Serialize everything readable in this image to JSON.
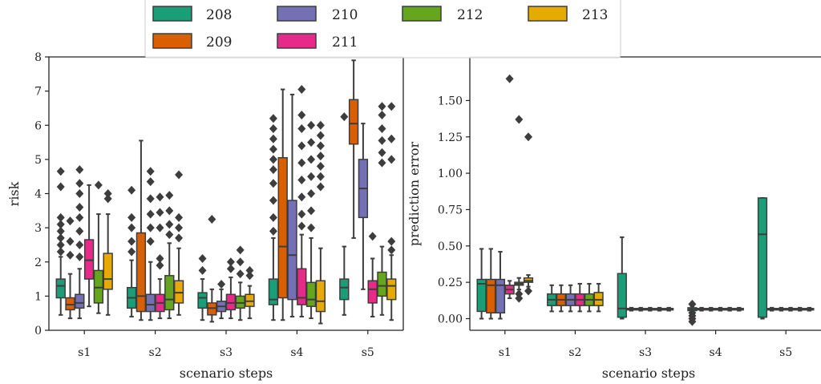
{
  "figure": {
    "background": "#ffffff",
    "axis_color": "#222222",
    "box_edge_color": "#3d3d3d"
  },
  "legend": {
    "placement": "top-center",
    "entries": [
      {
        "label": "208",
        "color": "#1b9e77"
      },
      {
        "label": "209",
        "color": "#d95f02"
      },
      {
        "label": "210",
        "color": "#7570b3"
      },
      {
        "label": "211",
        "color": "#e7298a"
      },
      {
        "label": "212",
        "color": "#66a61e"
      },
      {
        "label": "213",
        "color": "#e6ab02"
      }
    ]
  },
  "chart_data": [
    {
      "type": "boxplot",
      "xlabel": "scenario steps",
      "ylabel": "risk",
      "categories": [
        "s1",
        "s2",
        "s3",
        "s4",
        "s5"
      ],
      "ylim": [
        0,
        8
      ],
      "yticks": [
        0,
        1,
        2,
        3,
        4,
        5,
        6,
        7,
        8
      ],
      "ytick_labels": [
        "0",
        "1",
        "2",
        "3",
        "4",
        "5",
        "6",
        "7",
        "8"
      ],
      "grid": false,
      "series": [
        {
          "name": "208",
          "color": "#1b9e77",
          "boxes": [
            {
              "whislo": 0.45,
              "q1": 0.95,
              "med": 1.3,
              "q3": 1.5,
              "whishi": 2.15,
              "fliers": [
                2.3,
                2.5,
                2.7,
                2.9,
                3.1,
                3.3,
                4.2,
                4.65
              ]
            },
            {
              "whislo": 0.4,
              "q1": 0.65,
              "med": 0.95,
              "q3": 1.25,
              "whishi": 2.05,
              "fliers": [
                2.3,
                2.6,
                3.0,
                3.3,
                4.1
              ]
            },
            {
              "whislo": 0.3,
              "q1": 0.65,
              "med": 0.95,
              "q3": 1.1,
              "whishi": 1.5,
              "fliers": [
                1.75,
                2.1
              ]
            },
            {
              "whislo": 0.3,
              "q1": 0.75,
              "med": 0.9,
              "q3": 1.5,
              "whishi": 2.7,
              "fliers": [
                2.9,
                3.3,
                3.8,
                4.3,
                4.7,
                5.0,
                5.3,
                5.6,
                5.9,
                6.2
              ]
            },
            {
              "whislo": 0.45,
              "q1": 0.9,
              "med": 1.25,
              "q3": 1.5,
              "whishi": 2.45,
              "fliers": [
                6.25
              ]
            }
          ]
        },
        {
          "name": "209",
          "color": "#d95f02",
          "boxes": [
            {
              "whislo": 0.35,
              "q1": 0.6,
              "med": 0.75,
              "q3": 0.95,
              "whishi": 1.65,
              "fliers": [
                2.2,
                2.6,
                3.2
              ]
            },
            {
              "whislo": 0.3,
              "q1": 0.55,
              "med": 1.0,
              "q3": 2.85,
              "whishi": 5.55,
              "fliers": []
            },
            {
              "whislo": 0.25,
              "q1": 0.45,
              "med": 0.65,
              "q3": 0.8,
              "whishi": 1.2,
              "fliers": [
                3.25
              ]
            },
            {
              "whislo": 0.3,
              "q1": 0.95,
              "med": 2.45,
              "q3": 5.05,
              "whishi": 7.05,
              "fliers": []
            },
            {
              "whislo": 2.7,
              "q1": 5.45,
              "med": 6.05,
              "q3": 6.75,
              "whishi": 7.9,
              "fliers": []
            }
          ]
        },
        {
          "name": "210",
          "color": "#7570b3",
          "boxes": [
            {
              "whislo": 0.35,
              "q1": 0.65,
              "med": 0.8,
              "q3": 1.05,
              "whishi": 1.8,
              "fliers": [
                2.15,
                2.5,
                2.9,
                3.3,
                3.6,
                4.0,
                4.3,
                4.7
              ]
            },
            {
              "whislo": 0.3,
              "q1": 0.55,
              "med": 0.75,
              "q3": 1.05,
              "whishi": 2.0,
              "fliers": [
                2.6,
                3.0,
                3.4,
                3.85,
                4.35,
                4.65
              ]
            },
            {
              "whislo": 0.35,
              "q1": 0.55,
              "med": 0.7,
              "q3": 0.85,
              "whishi": 1.2,
              "fliers": [
                1.35
              ]
            },
            {
              "whislo": 0.4,
              "q1": 0.9,
              "med": 2.2,
              "q3": 3.8,
              "whishi": 6.9,
              "fliers": []
            },
            {
              "whislo": 1.2,
              "q1": 3.3,
              "med": 4.15,
              "q3": 5.0,
              "whishi": 6.05,
              "fliers": []
            }
          ]
        },
        {
          "name": "211",
          "color": "#e7298a",
          "boxes": [
            {
              "whislo": 0.7,
              "q1": 1.5,
              "med": 2.05,
              "q3": 2.65,
              "whishi": 4.25,
              "fliers": []
            },
            {
              "whislo": 0.35,
              "q1": 0.55,
              "med": 0.8,
              "q3": 1.05,
              "whishi": 1.5,
              "fliers": [
                1.9,
                2.1,
                3.0,
                3.45,
                3.9
              ]
            },
            {
              "whislo": 0.35,
              "q1": 0.6,
              "med": 0.8,
              "q3": 1.05,
              "whishi": 1.55,
              "fliers": [
                1.8,
                2.0
              ]
            },
            {
              "whislo": 0.4,
              "q1": 0.75,
              "med": 0.95,
              "q3": 1.8,
              "whishi": 2.8,
              "fliers": [
                3.05,
                3.4,
                3.9,
                4.4,
                4.9,
                5.4,
                5.9,
                6.3,
                7.05
              ]
            },
            {
              "whislo": 0.4,
              "q1": 0.8,
              "med": 1.2,
              "q3": 1.45,
              "whishi": 2.1,
              "fliers": [
                2.75
              ]
            }
          ]
        },
        {
          "name": "212",
          "color": "#66a61e",
          "boxes": [
            {
              "whislo": 0.5,
              "q1": 0.8,
              "med": 1.25,
              "q3": 1.75,
              "whishi": 3.4,
              "fliers": [
                4.25
              ]
            },
            {
              "whislo": 0.35,
              "q1": 0.6,
              "med": 0.9,
              "q3": 1.6,
              "whishi": 2.55,
              "fliers": [
                2.8,
                3.1,
                3.5,
                3.95
              ]
            },
            {
              "whislo": 0.3,
              "q1": 0.65,
              "med": 0.8,
              "q3": 1.0,
              "whishi": 1.4,
              "fliers": [
                1.65,
                2.0,
                2.35
              ]
            },
            {
              "whislo": 0.35,
              "q1": 0.7,
              "med": 0.9,
              "q3": 1.4,
              "whishi": 2.7,
              "fliers": [
                3.0,
                3.5,
                4.0,
                4.5,
                5.0,
                5.5,
                6.0
              ]
            },
            {
              "whislo": 0.45,
              "q1": 1.0,
              "med": 1.3,
              "q3": 1.7,
              "whishi": 2.45,
              "fliers": [
                4.9,
                5.2,
                5.55,
                5.9,
                6.3,
                6.55
              ]
            }
          ]
        },
        {
          "name": "213",
          "color": "#e6ab02",
          "boxes": [
            {
              "whislo": 0.45,
              "q1": 1.2,
              "med": 1.5,
              "q3": 2.25,
              "whishi": 3.4,
              "fliers": [
                3.85,
                4.0
              ]
            },
            {
              "whislo": 0.45,
              "q1": 0.8,
              "med": 1.1,
              "q3": 1.45,
              "whishi": 2.4,
              "fliers": [
                2.7,
                3.0,
                3.3,
                4.55
              ]
            },
            {
              "whislo": 0.35,
              "q1": 0.7,
              "med": 0.85,
              "q3": 1.05,
              "whishi": 1.3,
              "fliers": [
                1.6,
                1.75
              ]
            },
            {
              "whislo": 0.2,
              "q1": 0.55,
              "med": 0.85,
              "q3": 1.45,
              "whishi": 2.4,
              "fliers": [
                4.2,
                4.5,
                4.8,
                5.1,
                5.4,
                5.7,
                6.0
              ]
            },
            {
              "whislo": 0.3,
              "q1": 0.9,
              "med": 1.3,
              "q3": 1.5,
              "whishi": 2.2,
              "fliers": [
                2.35,
                2.6,
                5.0,
                5.6,
                6.55
              ]
            }
          ]
        }
      ]
    },
    {
      "type": "boxplot",
      "xlabel": "scenario steps",
      "ylabel": "prediction error",
      "categories": [
        "s1",
        "s2",
        "s3",
        "s4",
        "s5"
      ],
      "ylim": [
        -0.08,
        1.8
      ],
      "yticks": [
        0,
        0.25,
        0.5,
        0.75,
        1.0,
        1.25,
        1.5
      ],
      "ytick_labels": [
        "0.00",
        "0.25",
        "0.50",
        "0.75",
        "1.00",
        "1.25",
        "1.50"
      ],
      "grid": false,
      "series": [
        {
          "name": "208",
          "color": "#1b9e77",
          "boxes": [
            {
              "whislo": 0.0,
              "q1": 0.05,
              "med": 0.24,
              "q3": 0.27,
              "whishi": 0.48,
              "fliers": []
            },
            {
              "whislo": 0.05,
              "q1": 0.09,
              "med": 0.13,
              "q3": 0.17,
              "whishi": 0.23,
              "fliers": []
            },
            {
              "whislo": 0.0,
              "q1": 0.01,
              "med": 0.07,
              "q3": 0.31,
              "whishi": 0.56,
              "fliers": []
            },
            {
              "whislo": 0.05,
              "q1": 0.055,
              "med": 0.065,
              "q3": 0.075,
              "whishi": 0.085,
              "fliers": [
                -0.02,
                0.0,
                0.02,
                0.04,
                0.1
              ]
            },
            {
              "whislo": 0.0,
              "q1": 0.01,
              "med": 0.58,
              "q3": 0.83,
              "whishi": 0.83,
              "fliers": []
            }
          ]
        },
        {
          "name": "209",
          "color": "#d95f02",
          "boxes": [
            {
              "whislo": 0.0,
              "q1": 0.04,
              "med": 0.23,
              "q3": 0.27,
              "whishi": 0.48,
              "fliers": []
            },
            {
              "whislo": 0.05,
              "q1": 0.09,
              "med": 0.13,
              "q3": 0.17,
              "whishi": 0.23,
              "fliers": []
            },
            {
              "whislo": 0.055,
              "q1": 0.06,
              "med": 0.065,
              "q3": 0.07,
              "whishi": 0.075,
              "fliers": []
            },
            {
              "whislo": 0.055,
              "q1": 0.06,
              "med": 0.065,
              "q3": 0.07,
              "whishi": 0.075,
              "fliers": []
            },
            {
              "whislo": 0.055,
              "q1": 0.06,
              "med": 0.065,
              "q3": 0.07,
              "whishi": 0.075,
              "fliers": []
            }
          ]
        },
        {
          "name": "210",
          "color": "#7570b3",
          "boxes": [
            {
              "whislo": 0.0,
              "q1": 0.04,
              "med": 0.23,
              "q3": 0.27,
              "whishi": 0.46,
              "fliers": []
            },
            {
              "whislo": 0.05,
              "q1": 0.09,
              "med": 0.13,
              "q3": 0.17,
              "whishi": 0.23,
              "fliers": []
            },
            {
              "whislo": 0.055,
              "q1": 0.06,
              "med": 0.065,
              "q3": 0.07,
              "whishi": 0.075,
              "fliers": []
            },
            {
              "whislo": 0.055,
              "q1": 0.06,
              "med": 0.065,
              "q3": 0.07,
              "whishi": 0.075,
              "fliers": []
            },
            {
              "whislo": 0.055,
              "q1": 0.06,
              "med": 0.065,
              "q3": 0.07,
              "whishi": 0.075,
              "fliers": []
            }
          ]
        },
        {
          "name": "211",
          "color": "#e7298a",
          "boxes": [
            {
              "whislo": 0.14,
              "q1": 0.17,
              "med": 0.2,
              "q3": 0.23,
              "whishi": 0.26,
              "fliers": [
                1.65
              ]
            },
            {
              "whislo": 0.05,
              "q1": 0.09,
              "med": 0.13,
              "q3": 0.17,
              "whishi": 0.24,
              "fliers": []
            },
            {
              "whislo": 0.055,
              "q1": 0.06,
              "med": 0.065,
              "q3": 0.07,
              "whishi": 0.075,
              "fliers": []
            },
            {
              "whislo": 0.055,
              "q1": 0.06,
              "med": 0.065,
              "q3": 0.07,
              "whishi": 0.075,
              "fliers": []
            },
            {
              "whislo": 0.055,
              "q1": 0.06,
              "med": 0.065,
              "q3": 0.07,
              "whishi": 0.075,
              "fliers": []
            }
          ]
        },
        {
          "name": "212",
          "color": "#66a61e",
          "boxes": [
            {
              "whislo": 0.2,
              "q1": 0.23,
              "med": 0.24,
              "q3": 0.25,
              "whishi": 0.28,
              "fliers": [
                0.14,
                0.17,
                1.37
              ]
            },
            {
              "whislo": 0.05,
              "q1": 0.09,
              "med": 0.13,
              "q3": 0.17,
              "whishi": 0.24,
              "fliers": []
            },
            {
              "whislo": 0.055,
              "q1": 0.06,
              "med": 0.065,
              "q3": 0.07,
              "whishi": 0.075,
              "fliers": []
            },
            {
              "whislo": 0.055,
              "q1": 0.06,
              "med": 0.065,
              "q3": 0.07,
              "whishi": 0.075,
              "fliers": []
            },
            {
              "whislo": 0.055,
              "q1": 0.06,
              "med": 0.065,
              "q3": 0.07,
              "whishi": 0.075,
              "fliers": []
            }
          ]
        },
        {
          "name": "213",
          "color": "#e6ab02",
          "boxes": [
            {
              "whislo": 0.22,
              "q1": 0.25,
              "med": 0.26,
              "q3": 0.28,
              "whishi": 0.3,
              "fliers": [
                0.19,
                1.25
              ]
            },
            {
              "whislo": 0.05,
              "q1": 0.09,
              "med": 0.13,
              "q3": 0.18,
              "whishi": 0.24,
              "fliers": []
            },
            {
              "whislo": 0.055,
              "q1": 0.06,
              "med": 0.065,
              "q3": 0.07,
              "whishi": 0.075,
              "fliers": []
            },
            {
              "whislo": 0.055,
              "q1": 0.06,
              "med": 0.065,
              "q3": 0.07,
              "whishi": 0.075,
              "fliers": []
            },
            {
              "whislo": 0.055,
              "q1": 0.06,
              "med": 0.065,
              "q3": 0.07,
              "whishi": 0.075,
              "fliers": []
            }
          ]
        }
      ]
    }
  ]
}
